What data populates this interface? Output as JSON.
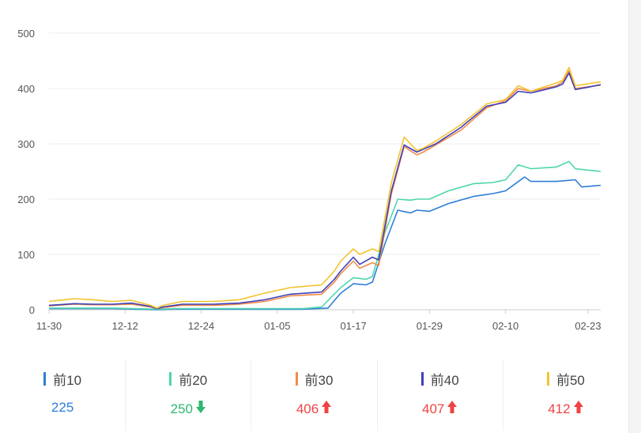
{
  "chart_data": {
    "type": "line",
    "ylim": [
      0,
      500
    ],
    "yticks": [
      0,
      100,
      200,
      300,
      400,
      500
    ],
    "x_tick_labels": [
      "11-30",
      "12-12",
      "12-24",
      "01-05",
      "01-17",
      "01-29",
      "02-10",
      "02-23"
    ],
    "x_tick_index": [
      0,
      12,
      24,
      36,
      48,
      60,
      72,
      85
    ],
    "n_points": 88,
    "series": [
      {
        "name": "前10",
        "color": "#2f7ed8",
        "knots": [
          [
            0,
            2
          ],
          [
            10,
            2
          ],
          [
            17,
            0
          ],
          [
            20,
            1
          ],
          [
            40,
            1
          ],
          [
            44,
            3
          ],
          [
            46,
            30
          ],
          [
            48,
            47
          ],
          [
            50,
            45
          ],
          [
            51,
            50
          ],
          [
            53,
            120
          ],
          [
            55,
            180
          ],
          [
            57,
            175
          ],
          [
            58,
            180
          ],
          [
            60,
            178
          ],
          [
            63,
            192
          ],
          [
            67,
            205
          ],
          [
            70,
            210
          ],
          [
            72,
            215
          ],
          [
            75,
            240
          ],
          [
            76,
            232
          ],
          [
            80,
            232
          ],
          [
            83,
            235
          ],
          [
            84,
            222
          ],
          [
            87,
            225
          ]
        ]
      },
      {
        "name": "前20",
        "color": "#4ed6ad",
        "knots": [
          [
            0,
            3
          ],
          [
            10,
            3
          ],
          [
            17,
            1
          ],
          [
            20,
            2
          ],
          [
            40,
            2
          ],
          [
            43,
            5
          ],
          [
            46,
            40
          ],
          [
            48,
            58
          ],
          [
            50,
            55
          ],
          [
            51,
            60
          ],
          [
            53,
            140
          ],
          [
            55,
            200
          ],
          [
            57,
            198
          ],
          [
            58,
            200
          ],
          [
            60,
            200
          ],
          [
            63,
            215
          ],
          [
            67,
            228
          ],
          [
            70,
            230
          ],
          [
            72,
            235
          ],
          [
            74,
            262
          ],
          [
            76,
            255
          ],
          [
            80,
            258
          ],
          [
            82,
            268
          ],
          [
            83,
            255
          ],
          [
            87,
            250
          ]
        ]
      },
      {
        "name": "前30",
        "color": "#f08c4a",
        "knots": [
          [
            0,
            7
          ],
          [
            4,
            10
          ],
          [
            7,
            9
          ],
          [
            10,
            9
          ],
          [
            13,
            10
          ],
          [
            16,
            5
          ],
          [
            17,
            2
          ],
          [
            18,
            4
          ],
          [
            21,
            8
          ],
          [
            26,
            8
          ],
          [
            30,
            10
          ],
          [
            34,
            15
          ],
          [
            38,
            25
          ],
          [
            43,
            28
          ],
          [
            45,
            50
          ],
          [
            46,
            65
          ],
          [
            48,
            88
          ],
          [
            49,
            75
          ],
          [
            51,
            85
          ],
          [
            52,
            80
          ],
          [
            54,
            210
          ],
          [
            56,
            295
          ],
          [
            58,
            280
          ],
          [
            59,
            285
          ],
          [
            61,
            298
          ],
          [
            65,
            325
          ],
          [
            69,
            365
          ],
          [
            72,
            378
          ],
          [
            74,
            400
          ],
          [
            76,
            395
          ],
          [
            80,
            405
          ],
          [
            81,
            412
          ],
          [
            82,
            432
          ],
          [
            83,
            400
          ],
          [
            87,
            406
          ]
        ]
      },
      {
        "name": "前40",
        "color": "#4040b8",
        "knots": [
          [
            0,
            8
          ],
          [
            4,
            11
          ],
          [
            7,
            10
          ],
          [
            10,
            10
          ],
          [
            13,
            12
          ],
          [
            16,
            6
          ],
          [
            17,
            2
          ],
          [
            18,
            5
          ],
          [
            21,
            10
          ],
          [
            26,
            10
          ],
          [
            30,
            12
          ],
          [
            34,
            18
          ],
          [
            38,
            28
          ],
          [
            43,
            32
          ],
          [
            45,
            55
          ],
          [
            46,
            70
          ],
          [
            48,
            95
          ],
          [
            49,
            82
          ],
          [
            51,
            95
          ],
          [
            52,
            90
          ],
          [
            54,
            215
          ],
          [
            56,
            298
          ],
          [
            58,
            285
          ],
          [
            59,
            290
          ],
          [
            61,
            300
          ],
          [
            65,
            330
          ],
          [
            69,
            368
          ],
          [
            72,
            375
          ],
          [
            74,
            395
          ],
          [
            76,
            392
          ],
          [
            80,
            403
          ],
          [
            81,
            408
          ],
          [
            82,
            428
          ],
          [
            83,
            398
          ],
          [
            87,
            407
          ]
        ]
      },
      {
        "name": "前50",
        "color": "#f2c430",
        "knots": [
          [
            0,
            15
          ],
          [
            4,
            20
          ],
          [
            7,
            18
          ],
          [
            10,
            15
          ],
          [
            13,
            17
          ],
          [
            16,
            8
          ],
          [
            17,
            3
          ],
          [
            18,
            8
          ],
          [
            21,
            15
          ],
          [
            26,
            15
          ],
          [
            30,
            18
          ],
          [
            34,
            30
          ],
          [
            38,
            40
          ],
          [
            43,
            45
          ],
          [
            45,
            70
          ],
          [
            46,
            88
          ],
          [
            48,
            110
          ],
          [
            49,
            100
          ],
          [
            51,
            110
          ],
          [
            52,
            105
          ],
          [
            54,
            230
          ],
          [
            56,
            312
          ],
          [
            58,
            288
          ],
          [
            59,
            292
          ],
          [
            61,
            305
          ],
          [
            65,
            335
          ],
          [
            69,
            372
          ],
          [
            72,
            380
          ],
          [
            74,
            405
          ],
          [
            76,
            395
          ],
          [
            80,
            410
          ],
          [
            81,
            415
          ],
          [
            82,
            438
          ],
          [
            83,
            405
          ],
          [
            87,
            412
          ]
        ]
      }
    ]
  },
  "legend": [
    {
      "label": "前10",
      "value": "225",
      "color": "#2f7ed8",
      "value_color": "#2f7ed8",
      "trend": "none"
    },
    {
      "label": "前20",
      "value": "250",
      "color": "#4ed6ad",
      "value_color": "#2eb872",
      "trend": "down"
    },
    {
      "label": "前30",
      "value": "406",
      "color": "#f08c4a",
      "value_color": "#f04343",
      "trend": "up"
    },
    {
      "label": "前40",
      "value": "407",
      "color": "#4040b8",
      "value_color": "#f04343",
      "trend": "up"
    },
    {
      "label": "前50",
      "value": "412",
      "color": "#f2c430",
      "value_color": "#f04343",
      "trend": "up"
    }
  ]
}
